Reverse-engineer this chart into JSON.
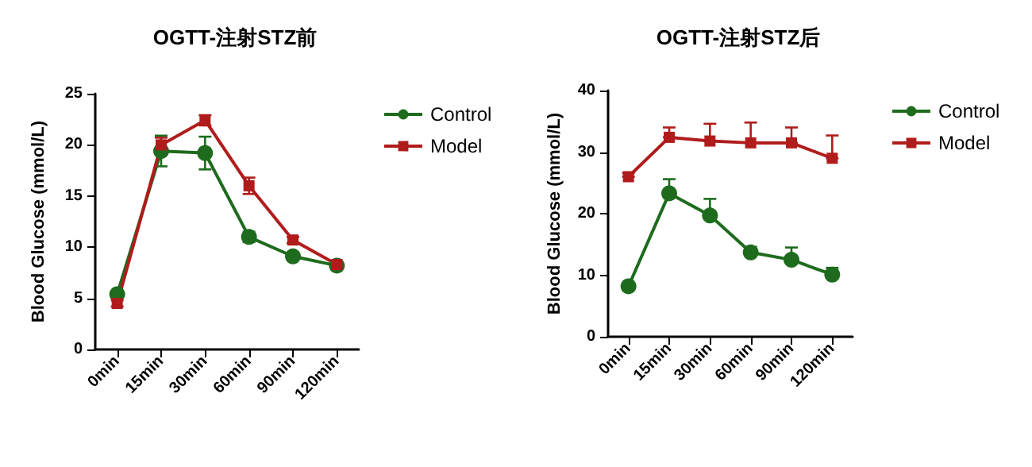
{
  "chart_data": [
    {
      "type": "line",
      "title": "OGTT-注射STZ前",
      "ylabel": "Blood Glucose (mmol/L)",
      "categories": [
        "0min",
        "15min",
        "30min",
        "60min",
        "90min",
        "120min"
      ],
      "ylim": [
        0,
        25
      ],
      "yticks": [
        0,
        5,
        10,
        15,
        20,
        25
      ],
      "legend": "right",
      "grid": false,
      "series": [
        {
          "name": "Control",
          "color": "#1e6b1e",
          "marker": "circle",
          "values": [
            5.4,
            19.4,
            19.2,
            11.0,
            9.1,
            8.2
          ],
          "errors": [
            0.2,
            1.5,
            1.6,
            0.5,
            0.3,
            0.2
          ]
        },
        {
          "name": "Model",
          "color": "#b01c1c",
          "marker": "square",
          "values": [
            4.5,
            20.0,
            22.4,
            16.0,
            10.7,
            8.3
          ],
          "errors": [
            0.3,
            0.7,
            0.5,
            0.8,
            0.3,
            0.2
          ]
        }
      ]
    },
    {
      "type": "line",
      "title": "OGTT-注射STZ后",
      "ylabel": "Blood Glucose (mmol/L)",
      "categories": [
        "0min",
        "15min",
        "30min",
        "60min",
        "90min",
        "120min"
      ],
      "ylim": [
        0,
        40
      ],
      "yticks": [
        0,
        10,
        20,
        30,
        40
      ],
      "legend": "right",
      "grid": false,
      "series": [
        {
          "name": "Control",
          "color": "#1e6b1e",
          "marker": "circle",
          "values": [
            8.2,
            23.3,
            19.7,
            13.7,
            12.5,
            10.1
          ],
          "errors": [
            [
              8.2,
              8.6
            ],
            [
              23.3,
              25.6
            ],
            [
              19.7,
              22.4
            ],
            [
              13.7,
              14.6
            ],
            [
              12.5,
              14.5
            ],
            [
              10.1,
              11.2
            ]
          ]
        },
        {
          "name": "Model",
          "color": "#b01c1c",
          "marker": "square",
          "values": [
            26.0,
            32.4,
            31.8,
            31.5,
            31.5,
            29.0
          ],
          "errors": [
            [
              26.0,
              26.6
            ],
            [
              32.4,
              34.0
            ],
            [
              31.8,
              34.6
            ],
            [
              31.5,
              34.8
            ],
            [
              31.5,
              34.0
            ],
            [
              29.0,
              32.7
            ]
          ]
        }
      ]
    }
  ]
}
